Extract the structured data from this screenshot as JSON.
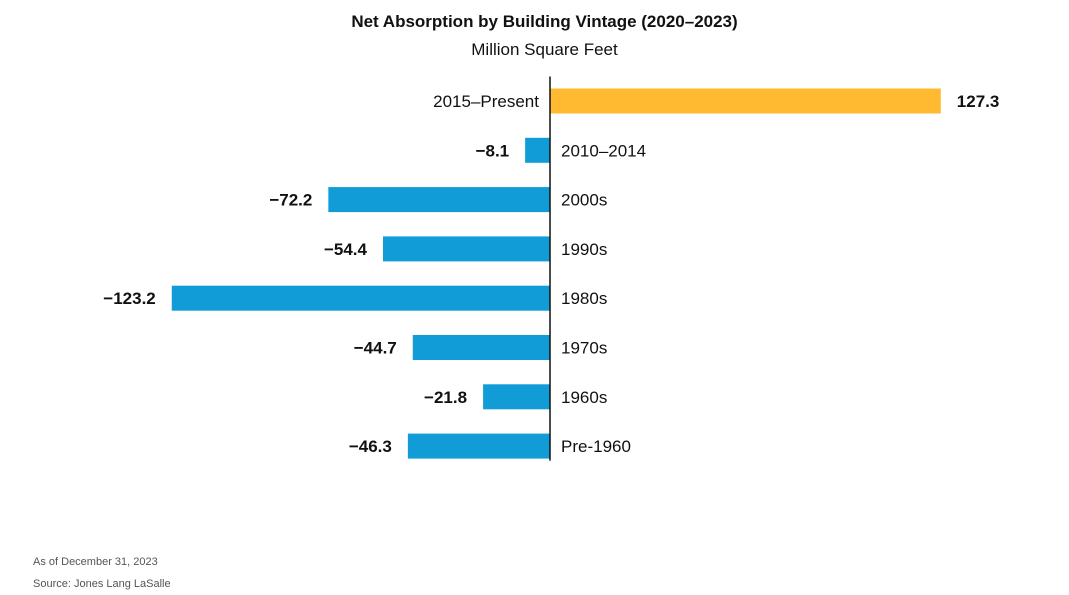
{
  "chart_data": {
    "type": "bar",
    "orientation": "horizontal",
    "title": "Net Absorption by Building Vintage (2020–2023)",
    "subtitle": "Million Square Feet",
    "categories": [
      "2015–Present",
      "2010–2014",
      "2000s",
      "1990s",
      "1980s",
      "1970s",
      "1960s",
      "Pre-1960"
    ],
    "values": [
      127.3,
      -8.1,
      -72.2,
      -54.4,
      -123.2,
      -44.7,
      -21.8,
      -46.3
    ],
    "value_labels": [
      "127.3",
      "−8.1",
      "−72.2",
      "−54.4",
      "−123.2",
      "−44.7",
      "−21.8",
      "−46.3"
    ],
    "colors": {
      "positive": "#FFBA32",
      "negative": "#119CD8",
      "axis": "#111111"
    },
    "grid": false,
    "legend": "none"
  },
  "footnotes": {
    "as_of": "As of December 31, 2023",
    "source": "Source: Jones Lang LaSalle"
  }
}
